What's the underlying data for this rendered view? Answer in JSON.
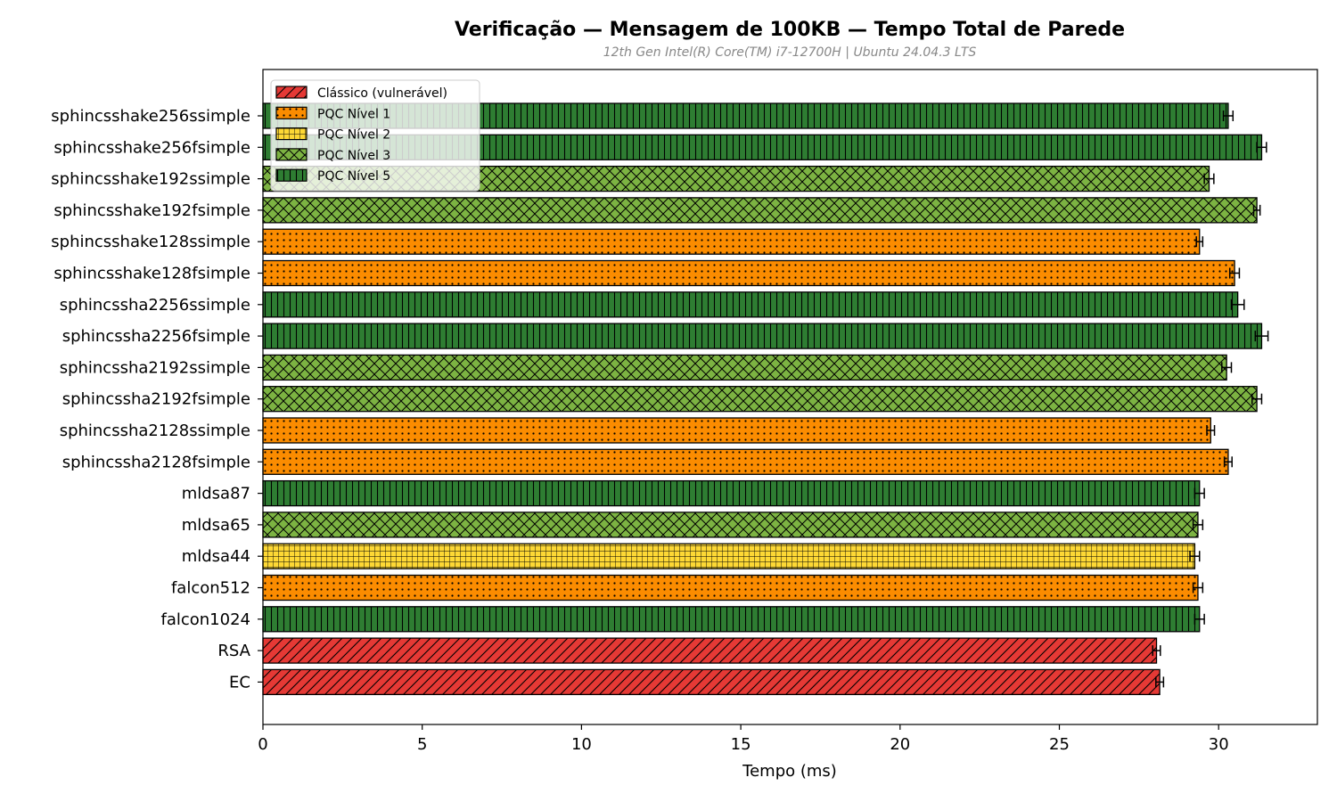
{
  "chart_data": {
    "type": "bar",
    "orientation": "horizontal",
    "title": "Verificação — Mensagem de 100KB — Tempo Total de Parede",
    "subtitle": "12th Gen Intel(R) Core(TM) i7-12700H | Ubuntu 24.04.3 LTS",
    "xlabel": "Tempo (ms)",
    "ylabel": "",
    "xlim": [
      0,
      33.1
    ],
    "xticks": [
      0,
      5,
      10,
      15,
      20,
      25,
      30
    ],
    "grid": false,
    "legend_position": "top-left",
    "categories_top_to_bottom": [
      "sphincsshake256ssimple",
      "sphincsshake256fsimple",
      "sphincsshake192ssimple",
      "sphincsshake192fsimple",
      "sphincsshake128ssimple",
      "sphincsshake128fsimple",
      "sphincssha2256ssimple",
      "sphincssha2256fsimple",
      "sphincssha2192ssimple",
      "sphincssha2192fsimple",
      "sphincssha2128ssimple",
      "sphincssha2128fsimple",
      "mldsa87",
      "mldsa65",
      "mldsa44",
      "falcon512",
      "falcon1024",
      "RSA",
      "EC"
    ],
    "values": [
      30.3,
      31.35,
      29.7,
      31.2,
      29.4,
      30.5,
      30.6,
      31.35,
      30.25,
      31.2,
      29.75,
      30.3,
      29.4,
      29.35,
      29.25,
      29.35,
      29.4,
      28.05,
      28.15
    ],
    "errors": [
      0.15,
      0.15,
      0.15,
      0.1,
      0.1,
      0.15,
      0.2,
      0.2,
      0.15,
      0.15,
      0.12,
      0.12,
      0.15,
      0.15,
      0.15,
      0.15,
      0.15,
      0.12,
      0.12
    ],
    "groups": [
      "PQC Nível 5",
      "PQC Nível 5",
      "PQC Nível 3",
      "PQC Nível 3",
      "PQC Nível 1",
      "PQC Nível 1",
      "PQC Nível 5",
      "PQC Nível 5",
      "PQC Nível 3",
      "PQC Nível 3",
      "PQC Nível 1",
      "PQC Nível 1",
      "PQC Nível 5",
      "PQC Nível 3",
      "PQC Nível 2",
      "PQC Nível 1",
      "PQC Nível 5",
      "Clássico (vulnerável)",
      "Clássico (vulnerável)"
    ],
    "legend": [
      {
        "name": "Clássico (vulnerável)",
        "color": "#e53935",
        "pattern": "diagonal"
      },
      {
        "name": "PQC Nível 1",
        "color": "#fb8c00",
        "pattern": "dots"
      },
      {
        "name": "PQC Nível 2",
        "color": "#fdd835",
        "pattern": "grid"
      },
      {
        "name": "PQC Nível 3",
        "color": "#7cb342",
        "pattern": "crosshatch"
      },
      {
        "name": "PQC Nível 5",
        "color": "#2e7d32",
        "pattern": "vertical"
      }
    ]
  }
}
